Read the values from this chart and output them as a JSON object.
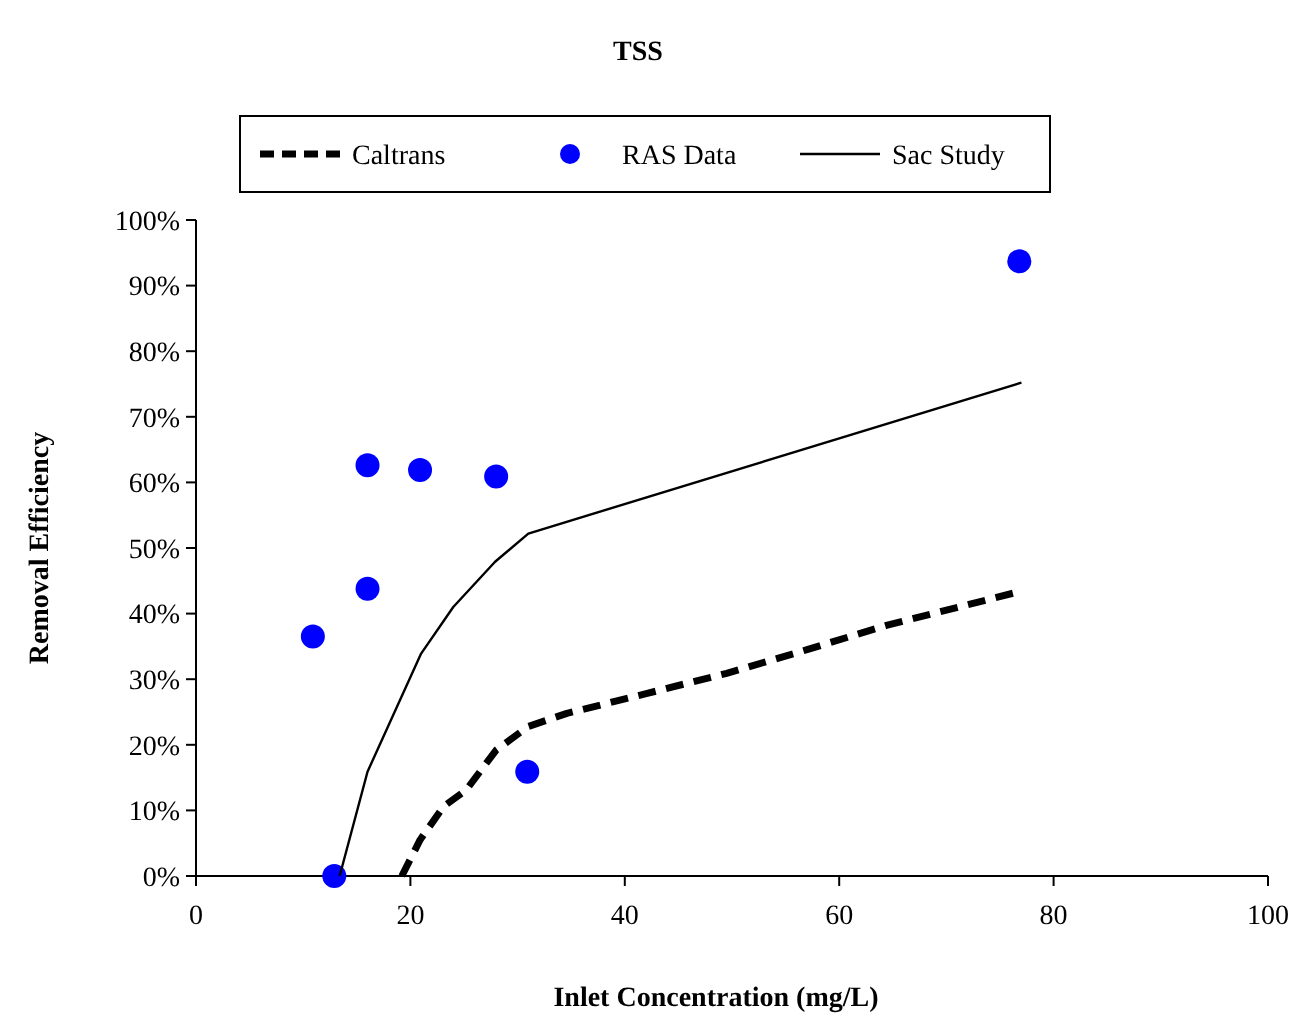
{
  "chart_data": {
    "type": "line",
    "title": "TSS",
    "xlabel": "Inlet Concentration (mg/L)",
    "ylabel": "Removal Efficiency",
    "xlim": [
      0,
      100
    ],
    "xticks": [
      0,
      20,
      40,
      60,
      80,
      100
    ],
    "ylim": [
      0,
      100
    ],
    "yticks": [
      {
        "value": 0,
        "label": "0%"
      },
      {
        "value": 10,
        "label": "10%"
      },
      {
        "value": 20,
        "label": "20%"
      },
      {
        "value": 30,
        "label": "30%"
      },
      {
        "value": 40,
        "label": "40%"
      },
      {
        "value": 50,
        "label": "50%"
      },
      {
        "value": 60,
        "label": "60%"
      },
      {
        "value": 70,
        "label": "70%"
      },
      {
        "value": 80,
        "label": "80%"
      },
      {
        "value": 90,
        "label": "90%"
      },
      {
        "value": 100,
        "label": "100%"
      }
    ],
    "legend": "top",
    "grid": false,
    "series": [
      {
        "name": "Caltrans",
        "line_style": "dashed",
        "color": "#000000",
        "x": [
          19.2,
          20.9,
          23.1,
          25.2,
          28,
          31,
          34.6,
          42,
          49.5,
          57,
          64.4,
          76.2
        ],
        "values": [
          0,
          5.5,
          10.6,
          13.1,
          19.2,
          22.8,
          24.8,
          27.8,
          30.9,
          34.5,
          38.2,
          43.1
        ]
      },
      {
        "name": "RAS Data",
        "type": "scatter",
        "marker": "circle",
        "color": "#0000ff",
        "x": [
          10.9,
          12.9,
          16,
          16,
          20.9,
          28,
          30.9,
          76.8
        ],
        "values": [
          36.5,
          0,
          62.6,
          43.8,
          61.9,
          60.9,
          15.9,
          93.7
        ]
      },
      {
        "name": "Sac Study",
        "line_style": "solid",
        "color": "#000000",
        "x": [
          13.4,
          16,
          21,
          24,
          27.9,
          31,
          77
        ],
        "values": [
          0,
          15.9,
          33.9,
          41,
          47.9,
          52.2,
          75.2
        ]
      }
    ]
  }
}
